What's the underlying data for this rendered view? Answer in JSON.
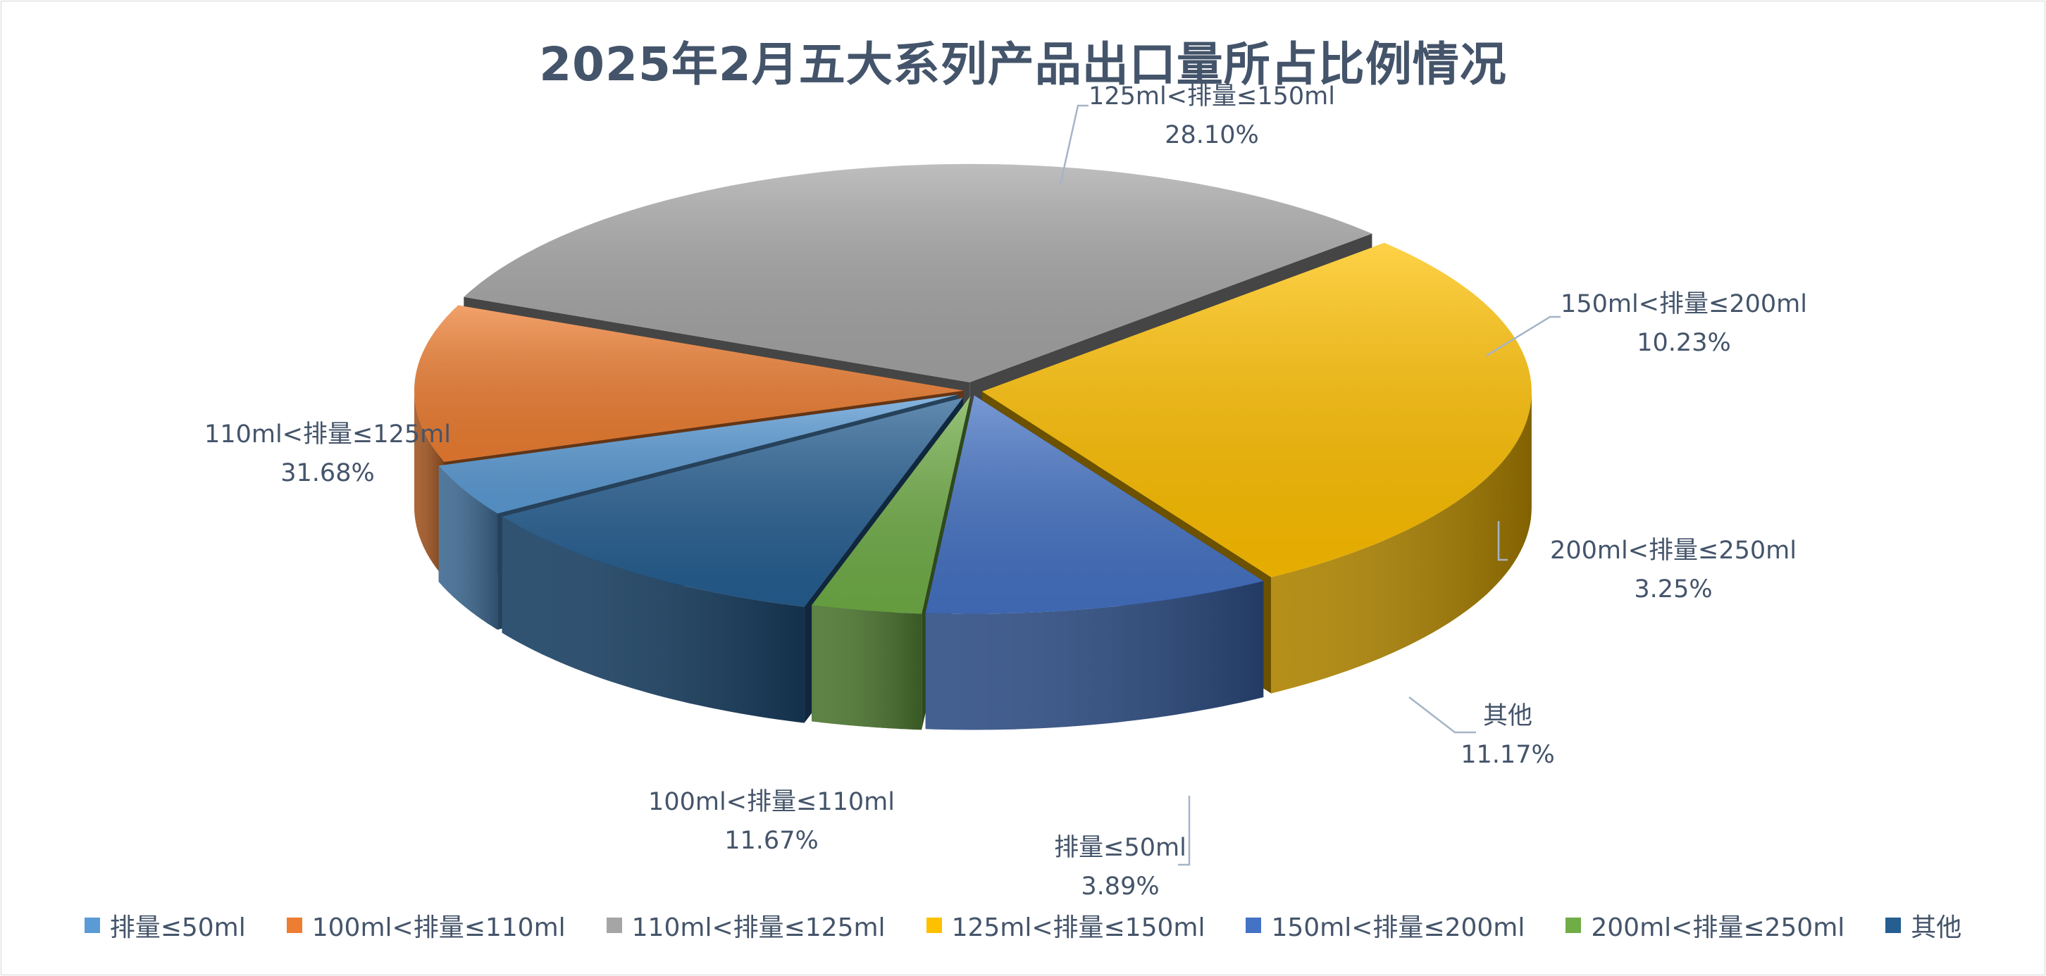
{
  "title": "2025年2月五大系列产品出口量所占比例情况",
  "chart_data": {
    "type": "pie",
    "title": "2025年2月五大系列产品出口量所占比例情况",
    "unit": "%",
    "legend_position": "bottom",
    "three_d": true,
    "exploded": true,
    "slices": [
      {
        "label": "排量≤50ml",
        "value": 3.89,
        "value_text": "3.89%",
        "color": "#5b9bd5"
      },
      {
        "label": "100ml<排量≤110ml",
        "value": 11.67,
        "value_text": "11.67%",
        "color": "#ed7d31"
      },
      {
        "label": "110ml<排量≤125ml",
        "value": 31.68,
        "value_text": "31.68%",
        "color": "#a5a5a5"
      },
      {
        "label": "125ml<排量≤150ml",
        "value": 28.1,
        "value_text": "28.10%",
        "color": "#ffc000"
      },
      {
        "label": "150ml<排量≤200ml",
        "value": 10.23,
        "value_text": "10.23%",
        "color": "#4472c4"
      },
      {
        "label": "200ml<排量≤250ml",
        "value": 3.25,
        "value_text": "3.25%",
        "color": "#70ad47"
      },
      {
        "label": "其他",
        "value": 11.17,
        "value_text": "11.17%",
        "color": "#255e91"
      }
    ]
  }
}
